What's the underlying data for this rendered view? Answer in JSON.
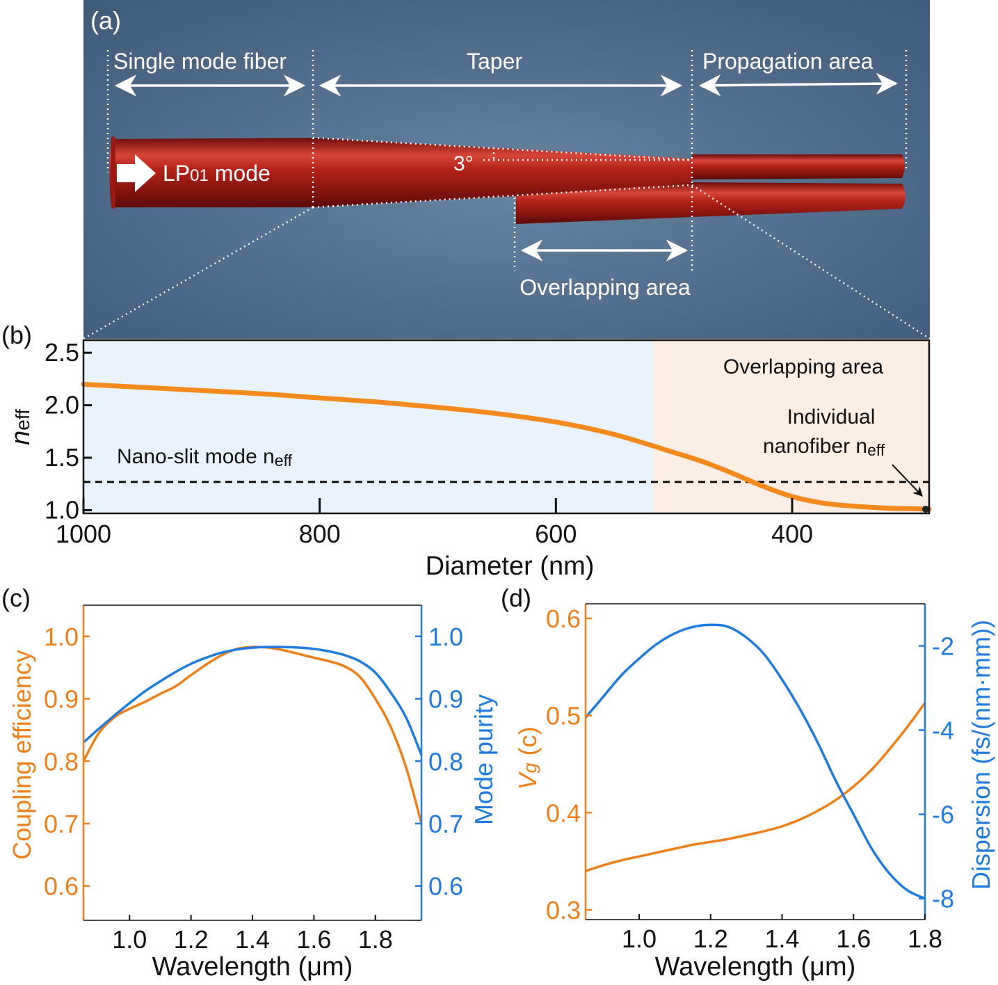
{
  "panel_a": {
    "label": "(a)",
    "section_labels": [
      "Single mode fiber",
      "Taper",
      "Propagation area"
    ],
    "angle_label": "3°",
    "mode_label": "LP",
    "mode_subscript": "01",
    "mode_suffix": " mode",
    "overlap_label": "Overlapping area",
    "colors": {
      "background": "#4e6a88",
      "fiber": "#a91d17",
      "annotation": "#ffffff"
    }
  },
  "chart_data": [
    {
      "panel": "(b)",
      "type": "line",
      "xlabel": "Diameter (nm)",
      "ylabel_main": "n",
      "ylabel_sub": "eff",
      "xlim": [
        1000,
        284
      ],
      "ylim": [
        0.97,
        2.62
      ],
      "xticks": [
        1000,
        800,
        600,
        400
      ],
      "yticks": [
        1.0,
        1.5,
        2.0,
        2.5
      ],
      "regions": [
        {
          "from": 1000,
          "to": 518,
          "color": "#eaf3fb"
        },
        {
          "from": 518,
          "to": 284,
          "color": "#fbeee5",
          "label": "Overlapping area"
        }
      ],
      "series": [
        {
          "color": "#f28a1e",
          "x": [
            1000,
            950,
            900,
            850,
            800,
            750,
            700,
            650,
            600,
            550,
            500,
            475,
            450,
            425,
            400,
            375,
            350,
            320,
            300,
            284
          ],
          "y": [
            2.2,
            2.17,
            2.14,
            2.11,
            2.07,
            2.03,
            1.98,
            1.92,
            1.84,
            1.72,
            1.55,
            1.46,
            1.35,
            1.23,
            1.13,
            1.07,
            1.04,
            1.02,
            1.015,
            1.01
          ]
        }
      ],
      "reference_line": {
        "y": 1.27,
        "label_main": "Nano-slit mode n",
        "label_sub": "eff"
      },
      "annotation": {
        "line1": "Individual",
        "line2_main": "nanofiber n",
        "line2_sub": "eff",
        "x": 284,
        "y": 1.01
      }
    },
    {
      "panel": "(c)",
      "type": "line",
      "xlabel": "Wavelength (μm)",
      "ylabel_left": "Coupling efficiency",
      "ylabel_right": "Mode purity",
      "xlim": [
        0.85,
        1.95
      ],
      "ylim_left": [
        0.545,
        1.05
      ],
      "ylim_right": [
        0.545,
        1.05
      ],
      "xticks": [
        1.0,
        1.2,
        1.4,
        1.6,
        1.8
      ],
      "yticks_left": [
        0.6,
        0.7,
        0.8,
        0.9,
        1.0
      ],
      "yticks_right": [
        0.6,
        0.7,
        0.8,
        0.9,
        1.0
      ],
      "series": [
        {
          "axis": "left",
          "color": "#f07f19",
          "x": [
            0.85,
            0.9,
            0.95,
            1.0,
            1.05,
            1.1,
            1.15,
            1.2,
            1.25,
            1.3,
            1.35,
            1.4,
            1.45,
            1.5,
            1.55,
            1.6,
            1.65,
            1.7,
            1.75,
            1.8,
            1.85,
            1.9,
            1.95
          ],
          "y": [
            0.8,
            0.845,
            0.87,
            0.884,
            0.895,
            0.908,
            0.92,
            0.938,
            0.955,
            0.97,
            0.98,
            0.983,
            0.982,
            0.978,
            0.972,
            0.966,
            0.96,
            0.952,
            0.935,
            0.9,
            0.855,
            0.79,
            0.7
          ]
        },
        {
          "axis": "right",
          "color": "#1e7be0",
          "x": [
            0.85,
            0.9,
            0.95,
            1.0,
            1.05,
            1.1,
            1.15,
            1.2,
            1.25,
            1.3,
            1.35,
            1.4,
            1.45,
            1.5,
            1.55,
            1.6,
            1.65,
            1.7,
            1.75,
            1.8,
            1.85,
            1.9,
            1.95
          ],
          "y": [
            0.83,
            0.852,
            0.873,
            0.893,
            0.912,
            0.928,
            0.943,
            0.956,
            0.966,
            0.974,
            0.979,
            0.982,
            0.983,
            0.983,
            0.982,
            0.98,
            0.976,
            0.97,
            0.96,
            0.942,
            0.91,
            0.87,
            0.81
          ]
        }
      ]
    },
    {
      "panel": "(d)",
      "type": "line",
      "xlabel": "Wavelength (μm)",
      "ylabel_left_main": "V",
      "ylabel_left_sub": "g",
      "ylabel_left_suffix": " (c)",
      "ylabel_right": "Dispersion  (fs/(nm·mm))",
      "xlim": [
        0.85,
        1.8
      ],
      "ylim_left": [
        0.29,
        0.615
      ],
      "ylim_right": [
        -8.5,
        -1.0
      ],
      "xticks": [
        1.0,
        1.2,
        1.4,
        1.6,
        1.8
      ],
      "yticks_left": [
        0.3,
        0.4,
        0.5,
        0.6
      ],
      "yticks_right": [
        -8,
        -6,
        -4,
        -2
      ],
      "series": [
        {
          "axis": "left",
          "color": "#f07f19",
          "x": [
            0.85,
            0.9,
            0.95,
            1.0,
            1.05,
            1.1,
            1.15,
            1.2,
            1.25,
            1.3,
            1.35,
            1.4,
            1.45,
            1.5,
            1.55,
            1.6,
            1.65,
            1.7,
            1.75,
            1.8
          ],
          "y": [
            0.34,
            0.346,
            0.351,
            0.355,
            0.359,
            0.363,
            0.367,
            0.37,
            0.373,
            0.377,
            0.381,
            0.386,
            0.393,
            0.402,
            0.413,
            0.427,
            0.444,
            0.465,
            0.488,
            0.513
          ]
        },
        {
          "axis": "right",
          "color": "#1e7be0",
          "x": [
            0.85,
            0.9,
            0.95,
            1.0,
            1.05,
            1.1,
            1.15,
            1.2,
            1.25,
            1.3,
            1.35,
            1.4,
            1.45,
            1.5,
            1.55,
            1.6,
            1.65,
            1.7,
            1.75,
            1.8
          ],
          "y": [
            -3.7,
            -3.2,
            -2.7,
            -2.3,
            -1.95,
            -1.7,
            -1.55,
            -1.5,
            -1.55,
            -1.8,
            -2.2,
            -2.8,
            -3.5,
            -4.3,
            -5.2,
            -6.0,
            -6.8,
            -7.4,
            -7.8,
            -8.0
          ]
        }
      ]
    }
  ]
}
